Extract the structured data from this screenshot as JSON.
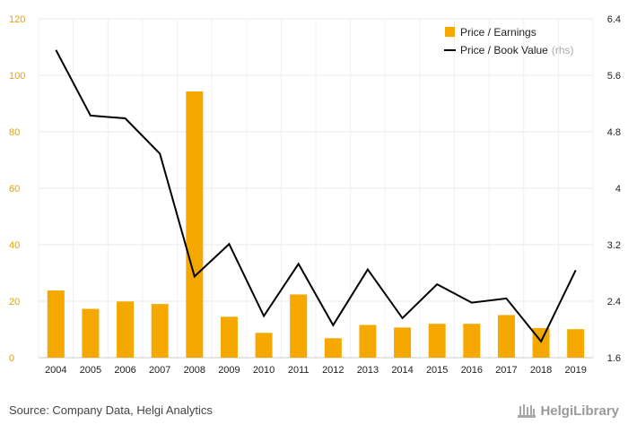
{
  "chart_data": {
    "type": "bar",
    "categories": [
      "2004",
      "2005",
      "2006",
      "2007",
      "2008",
      "2009",
      "2010",
      "2011",
      "2012",
      "2013",
      "2014",
      "2015",
      "2016",
      "2017",
      "2018",
      "2019"
    ],
    "series": [
      {
        "name": "Price / Earnings",
        "type": "bar",
        "axis": "left",
        "color": "#f5a800",
        "values": [
          23.8,
          17.3,
          19.9,
          19.0,
          94.3,
          14.5,
          8.8,
          22.4,
          6.9,
          11.6,
          10.7,
          12.0,
          12.0,
          15.1,
          10.5,
          10.1
        ]
      },
      {
        "name": "Price / Book Value",
        "type": "line",
        "axis": "right",
        "color": "#000000",
        "values": [
          5.96,
          5.03,
          4.99,
          4.49,
          2.75,
          3.21,
          2.19,
          2.93,
          2.06,
          2.85,
          2.16,
          2.64,
          2.38,
          2.44,
          1.83,
          2.84
        ]
      }
    ],
    "left_axis": {
      "ylim": [
        0,
        120
      ],
      "ticks": [
        0,
        20,
        40,
        60,
        80,
        100,
        120
      ],
      "tick_color": "#e6a200"
    },
    "right_axis": {
      "ylim": [
        1.6,
        6.4
      ],
      "ticks": [
        1.6,
        2.4,
        3.2,
        4,
        4.8,
        5.6,
        6.4
      ]
    },
    "legend": {
      "position": "top-right",
      "items": [
        {
          "label": "Price / Earnings",
          "marker": "square",
          "color": "#f5a800"
        },
        {
          "label": "Price / Book Value",
          "suffix": "(rhs)",
          "marker": "line",
          "color": "#000000"
        }
      ]
    },
    "grid": true,
    "title": "",
    "xlabel": "",
    "ylabel": ""
  },
  "footer": {
    "source": "Source: Company Data, Helgi Analytics",
    "brand": "HelgiLibrary"
  }
}
